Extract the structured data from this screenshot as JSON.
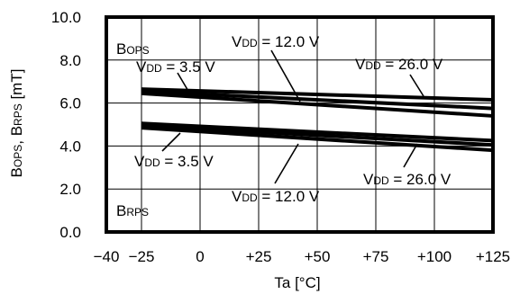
{
  "chart_data": {
    "type": "line",
    "xlabel": "Ta [°C]",
    "ylabel": "BOPS, BRPS [mT]",
    "ylabel_parts": [
      {
        "text": "B",
        "sub": "OPS"
      },
      {
        "text": ", ",
        "sub": ""
      },
      {
        "text": "B",
        "sub": "RPS"
      },
      {
        "text": " [mT]",
        "sub": ""
      }
    ],
    "xlim": [
      -40,
      125
    ],
    "ylim": [
      0,
      10
    ],
    "x_ticks": [
      {
        "value": -40,
        "label": "−40"
      },
      {
        "value": -25,
        "label": "−25"
      },
      {
        "value": 0,
        "label": "0"
      },
      {
        "value": 25,
        "label": "+25"
      },
      {
        "value": 50,
        "label": "+50"
      },
      {
        "value": 75,
        "label": "+75"
      },
      {
        "value": 100,
        "label": "+100"
      },
      {
        "value": 125,
        "label": "+125"
      }
    ],
    "y_ticks": [
      {
        "value": 0,
        "label": "0.0"
      },
      {
        "value": 2,
        "label": "2.0"
      },
      {
        "value": 4,
        "label": "4.0"
      },
      {
        "value": 6,
        "label": "6.0"
      },
      {
        "value": 8,
        "label": "8.0"
      },
      {
        "value": 10,
        "label": "10.0"
      }
    ],
    "grid": true,
    "series": [
      {
        "group": "BOPS",
        "vdd": "3.5 V",
        "x": [
          -25,
          125
        ],
        "y": [
          6.45,
          5.4
        ]
      },
      {
        "group": "BOPS",
        "vdd": "12.0 V",
        "x": [
          -25,
          125
        ],
        "y": [
          6.55,
          5.75
        ]
      },
      {
        "group": "BOPS",
        "vdd": "26.0 V",
        "x": [
          -25,
          125
        ],
        "y": [
          6.65,
          6.15
        ]
      },
      {
        "group": "BRPS",
        "vdd": "3.5 V",
        "x": [
          -25,
          125
        ],
        "y": [
          4.85,
          3.8
        ]
      },
      {
        "group": "BRPS",
        "vdd": "12.0 V",
        "x": [
          -25,
          125
        ],
        "y": [
          4.95,
          4.05
        ]
      },
      {
        "group": "BRPS",
        "vdd": "26.0 V",
        "x": [
          -25,
          125
        ],
        "y": [
          5.05,
          4.25
        ]
      }
    ],
    "annotations": {
      "group_labels": [
        {
          "main": "B",
          "sub": "OPS"
        },
        {
          "main": "B",
          "sub": "RPS"
        }
      ],
      "vdd_labels": [
        {
          "pre": "V",
          "sub": "DD",
          "post": " = 3.5 V"
        },
        {
          "pre": "V",
          "sub": "DD",
          "post": " = 12.0 V"
        },
        {
          "pre": "V",
          "sub": "DD",
          "post": " = 26.0 V"
        },
        {
          "pre": "V",
          "sub": "DD",
          "post": " = 3.5 V"
        },
        {
          "pre": "V",
          "sub": "DD",
          "post": " = 12.0 V"
        },
        {
          "pre": "V",
          "sub": "DD",
          "post": " = 26.0 V"
        }
      ]
    }
  }
}
